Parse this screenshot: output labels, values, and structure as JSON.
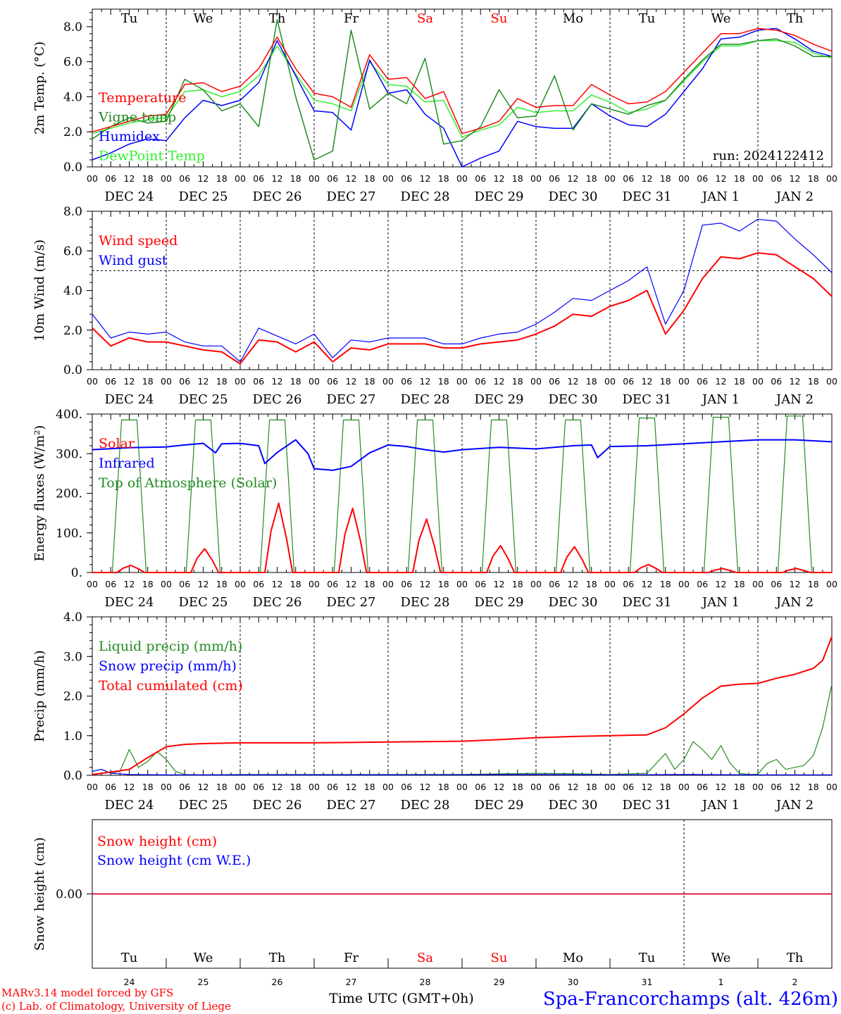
{
  "meta": {
    "run_label": "run: 2024122412",
    "footer_line1": "MARv3.14 model forced by GFS",
    "footer_line2": "(c) Lab. of Climatology, University of Liege",
    "time_label": "Time UTC (GMT+0h)",
    "station": "Spa-Francorchamps (alt. 426m)"
  },
  "days": [
    "Tu",
    "We",
    "Th",
    "Fr",
    "Sa",
    "Su",
    "Mo",
    "Tu",
    "We",
    "Th"
  ],
  "day_colors": [
    "#000000",
    "#000000",
    "#000000",
    "#000000",
    "#ff0000",
    "#ff0000",
    "#000000",
    "#000000",
    "#000000",
    "#000000"
  ],
  "date_labels": [
    "DEC 24",
    "DEC 25",
    "DEC 26",
    "DEC 27",
    "DEC 28",
    "DEC 29",
    "DEC 30",
    "DEC 31",
    "JAN  1",
    "JAN  2"
  ],
  "day_numbers": [
    "24",
    "25",
    "26",
    "27",
    "28",
    "29",
    "30",
    "31",
    "1",
    "2"
  ],
  "hour_ticks": [
    "00",
    "06",
    "12",
    "18"
  ],
  "colors": {
    "red": "#ff0000",
    "green": "#228b22",
    "blue": "#0000ff",
    "lightgreen": "#33ee33"
  },
  "chart_data": [
    {
      "type": "line",
      "ylabel": "2m Temp. (°C)",
      "ylim": [
        0,
        9
      ],
      "yticks": [
        "0.0",
        "2.0",
        "4.0",
        "6.0",
        "8.0"
      ],
      "x_unit": "hours since DEC 24 00 UTC",
      "series": [
        {
          "name": "Temperature",
          "color": "red",
          "x": [
            0,
            6,
            12,
            18,
            24,
            30,
            36,
            42,
            48,
            54,
            60,
            66,
            72,
            78,
            84,
            90,
            96,
            102,
            108,
            114,
            120,
            126,
            132,
            138,
            144,
            150,
            156,
            162,
            168,
            174,
            180,
            186,
            192,
            198,
            204,
            210,
            216,
            222,
            228,
            234,
            240
          ],
          "values": [
            2.0,
            2.3,
            2.6,
            2.9,
            3.0,
            4.7,
            4.8,
            4.3,
            4.6,
            5.6,
            7.4,
            5.6,
            4.2,
            4.0,
            3.4,
            6.4,
            5.0,
            5.1,
            3.9,
            4.3,
            1.9,
            2.2,
            2.6,
            3.9,
            3.4,
            3.5,
            3.5,
            4.7,
            4.1,
            3.6,
            3.7,
            4.3,
            5.4,
            6.5,
            7.6,
            7.6,
            7.9,
            7.8,
            7.5,
            7.0,
            6.6
          ]
        },
        {
          "name": "Vigne temp",
          "color": "green",
          "x": [
            0,
            6,
            12,
            18,
            24,
            30,
            36,
            42,
            48,
            54,
            60,
            66,
            72,
            78,
            84,
            90,
            96,
            102,
            108,
            114,
            120,
            126,
            132,
            138,
            144,
            150,
            156,
            162,
            168,
            174,
            180,
            186,
            192,
            198,
            204,
            210,
            216,
            222,
            228,
            234,
            240
          ],
          "values": [
            1.6,
            2.3,
            2.8,
            2.5,
            2.6,
            5.0,
            4.4,
            3.2,
            3.6,
            2.3,
            8.4,
            4.0,
            0.4,
            0.9,
            7.8,
            3.3,
            4.2,
            3.6,
            6.2,
            1.3,
            1.5,
            2.3,
            4.4,
            2.8,
            2.9,
            5.2,
            2.1,
            3.6,
            3.3,
            3.0,
            3.5,
            3.8,
            5.0,
            6.1,
            7.0,
            7.0,
            7.2,
            7.3,
            6.9,
            6.3,
            6.3
          ]
        },
        {
          "name": "Humidex",
          "color": "blue",
          "x": [
            0,
            6,
            12,
            18,
            24,
            30,
            36,
            42,
            48,
            54,
            60,
            66,
            72,
            78,
            84,
            90,
            96,
            102,
            108,
            114,
            120,
            126,
            132,
            138,
            144,
            150,
            156,
            162,
            168,
            174,
            180,
            186,
            192,
            198,
            204,
            210,
            216,
            222,
            228,
            234,
            240
          ],
          "values": [
            0.4,
            0.8,
            1.3,
            1.6,
            1.5,
            2.8,
            3.8,
            3.5,
            3.8,
            4.8,
            7.2,
            5.2,
            3.2,
            3.1,
            2.1,
            6.1,
            4.2,
            4.4,
            3.0,
            2.2,
            0.0,
            0.5,
            0.9,
            2.6,
            2.3,
            2.2,
            2.2,
            3.6,
            2.9,
            2.4,
            2.3,
            3.0,
            4.3,
            5.6,
            7.3,
            7.4,
            7.8,
            7.9,
            7.3,
            6.6,
            6.3
          ]
        },
        {
          "name": "DewPoint Temp",
          "color": "lightgreen",
          "x": [
            0,
            6,
            12,
            18,
            24,
            30,
            36,
            42,
            48,
            54,
            60,
            66,
            72,
            78,
            84,
            90,
            96,
            102,
            108,
            114,
            120,
            126,
            132,
            138,
            144,
            150,
            156,
            162,
            168,
            174,
            180,
            186,
            192,
            198,
            204,
            210,
            216,
            222,
            228,
            234,
            240
          ],
          "values": [
            1.9,
            2.2,
            2.5,
            2.7,
            2.8,
            4.3,
            4.4,
            4.0,
            4.3,
            5.2,
            6.9,
            5.3,
            3.8,
            3.6,
            3.2,
            6.0,
            4.7,
            4.6,
            3.7,
            3.8,
            1.7,
            2.1,
            2.4,
            3.4,
            3.1,
            3.2,
            3.2,
            4.1,
            3.7,
            3.1,
            3.3,
            3.8,
            4.9,
            6.0,
            6.9,
            6.9,
            7.2,
            7.2,
            7.1,
            6.5,
            6.2
          ]
        }
      ]
    },
    {
      "type": "line",
      "ylabel": "10m Wind (m/s)",
      "ylim": [
        0,
        8
      ],
      "yticks": [
        "0.0",
        "2.0",
        "4.0",
        "6.0",
        "8.0"
      ],
      "reference_line": 5,
      "series": [
        {
          "name": "Wind speed",
          "color": "red",
          "x": [
            0,
            6,
            12,
            18,
            24,
            30,
            36,
            42,
            48,
            54,
            60,
            66,
            72,
            78,
            84,
            90,
            96,
            102,
            108,
            114,
            120,
            126,
            132,
            138,
            144,
            150,
            156,
            162,
            168,
            174,
            180,
            186,
            192,
            198,
            204,
            210,
            216,
            222,
            228,
            234,
            240
          ],
          "values": [
            2.1,
            1.2,
            1.6,
            1.4,
            1.4,
            1.2,
            1.0,
            0.9,
            0.3,
            1.5,
            1.4,
            0.9,
            1.4,
            0.4,
            1.1,
            1.0,
            1.3,
            1.3,
            1.3,
            1.1,
            1.1,
            1.3,
            1.4,
            1.5,
            1.8,
            2.2,
            2.8,
            2.7,
            3.2,
            3.5,
            4.0,
            1.8,
            3.0,
            4.6,
            5.7,
            5.6,
            5.9,
            5.8,
            5.2,
            4.6,
            3.7
          ]
        },
        {
          "name": "Wind gust",
          "color": "blue",
          "x": [
            0,
            6,
            12,
            18,
            24,
            30,
            36,
            42,
            48,
            54,
            60,
            66,
            72,
            78,
            84,
            90,
            96,
            102,
            108,
            114,
            120,
            126,
            132,
            138,
            144,
            150,
            156,
            162,
            168,
            174,
            180,
            186,
            192,
            198,
            204,
            210,
            216,
            222,
            228,
            234,
            240
          ],
          "values": [
            2.8,
            1.6,
            1.9,
            1.8,
            1.9,
            1.4,
            1.2,
            1.2,
            0.4,
            2.1,
            1.7,
            1.3,
            1.8,
            0.6,
            1.5,
            1.4,
            1.6,
            1.6,
            1.6,
            1.3,
            1.3,
            1.6,
            1.8,
            1.9,
            2.3,
            2.9,
            3.6,
            3.5,
            4.0,
            4.5,
            5.2,
            2.3,
            4.0,
            7.3,
            7.4,
            7.0,
            7.6,
            7.5,
            6.6,
            5.8,
            4.9
          ]
        }
      ]
    },
    {
      "type": "line",
      "ylabel": "Energy fluxes (W/m²)",
      "ylim": [
        0,
        400
      ],
      "yticks": [
        "0.",
        "100.",
        "200.",
        "300.",
        "400."
      ],
      "series": [
        {
          "name": "Solar",
          "color": "red",
          "peaks": [
            18,
            60,
            175,
            162,
            135,
            68,
            65,
            20,
            10,
            10
          ]
        },
        {
          "name": "Infrared",
          "color": "blue",
          "x": [
            0,
            12,
            24,
            30,
            36,
            40,
            42,
            48,
            54,
            56,
            60,
            66,
            70,
            72,
            78,
            84,
            90,
            96,
            102,
            108,
            114,
            120,
            132,
            144,
            156,
            162,
            164,
            168,
            180,
            192,
            204,
            216,
            228,
            240
          ],
          "values": [
            310,
            315,
            317,
            322,
            326,
            302,
            325,
            326,
            320,
            275,
            303,
            335,
            300,
            262,
            258,
            268,
            302,
            322,
            318,
            310,
            304,
            310,
            316,
            312,
            320,
            322,
            290,
            318,
            320,
            325,
            330,
            335,
            335,
            330
          ]
        },
        {
          "name": "Top of Atmosphere (Solar)",
          "color": "green",
          "peaks": [
            385,
            385,
            385,
            385,
            385,
            385,
            385,
            390,
            392,
            395
          ]
        }
      ]
    },
    {
      "type": "line",
      "ylabel": "Precip (mm/h)",
      "ylim": [
        0,
        4
      ],
      "yticks": [
        "0.0",
        "1.0",
        "2.0",
        "3.0",
        "4.0"
      ],
      "series": [
        {
          "name": "Liquid precip (mm/h)",
          "color": "green",
          "x": [
            0,
            3,
            6,
            9,
            12,
            15,
            18,
            21,
            24,
            27,
            30,
            36,
            48,
            72,
            96,
            120,
            144,
            156,
            168,
            180,
            186,
            189,
            192,
            195,
            198,
            201,
            204,
            207,
            210,
            213,
            216,
            219,
            222,
            225,
            228,
            231,
            234,
            237,
            240
          ],
          "values": [
            0.1,
            0.15,
            0.05,
            0.1,
            0.65,
            0.2,
            0.35,
            0.6,
            0.4,
            0.1,
            0.02,
            0.01,
            0.02,
            0.02,
            0.02,
            0.02,
            0.05,
            0.04,
            0.02,
            0.05,
            0.55,
            0.15,
            0.4,
            0.85,
            0.65,
            0.4,
            0.75,
            0.3,
            0.05,
            0.02,
            0.03,
            0.3,
            0.4,
            0.15,
            0.2,
            0.25,
            0.5,
            1.2,
            2.3
          ]
        },
        {
          "name": "Snow precip (mm/h)",
          "color": "blue",
          "x": [
            0,
            3,
            6,
            12,
            24,
            48,
            96,
            144,
            168,
            192,
            216,
            240
          ],
          "values": [
            0.1,
            0.15,
            0.05,
            0.02,
            0.01,
            0.01,
            0.01,
            0.02,
            0.01,
            0.02,
            0.01,
            0.01
          ]
        },
        {
          "name": "Total cumulated (cm)",
          "color": "red",
          "x": [
            0,
            6,
            12,
            18,
            24,
            30,
            36,
            48,
            72,
            96,
            120,
            132,
            144,
            156,
            168,
            180,
            186,
            192,
            198,
            204,
            210,
            216,
            222,
            228,
            234,
            237,
            240
          ],
          "values": [
            0.02,
            0.08,
            0.15,
            0.45,
            0.72,
            0.78,
            0.8,
            0.82,
            0.82,
            0.84,
            0.86,
            0.9,
            0.95,
            0.98,
            1.0,
            1.02,
            1.2,
            1.55,
            1.95,
            2.25,
            2.3,
            2.32,
            2.45,
            2.55,
            2.7,
            2.9,
            3.5
          ]
        }
      ]
    },
    {
      "type": "line",
      "ylabel": "Snow height (cm)",
      "yticks": [
        "0.00"
      ],
      "series": [
        {
          "name": "Snow height (cm)",
          "color": "red",
          "x": [
            0,
            240
          ],
          "values": [
            0,
            0
          ]
        },
        {
          "name": "Snow height (cm W.E.)",
          "color": "blue",
          "x": [
            0,
            240
          ],
          "values": [
            0,
            0
          ]
        }
      ]
    }
  ]
}
